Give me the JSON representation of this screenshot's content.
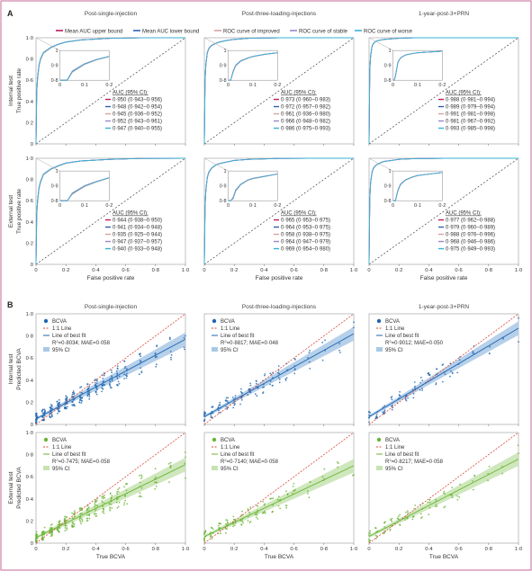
{
  "panel_a": {
    "label": "A",
    "columns": [
      "Post-single-injection",
      "Post-three-loading-injections",
      "1-year-post-3+PRN"
    ],
    "rows": [
      "Internal test",
      "External test"
    ],
    "legend": [
      {
        "name": "Mean AUC upper bound",
        "color": "#c2185b"
      },
      {
        "name": "Mean AUC lower bound",
        "color": "#2f5fb3"
      },
      {
        "name": "ROC curve of improved",
        "color": "#d9a0a0"
      },
      {
        "name": "ROC curve of stable",
        "color": "#9b86c8"
      },
      {
        "name": "ROC curve of worse",
        "color": "#35b2d6"
      }
    ],
    "ylabel": "True positive rate",
    "xlabel": "False positive rate",
    "ticks": [
      "0",
      "0·2",
      "0·4",
      "0·6",
      "0·8",
      "1·0"
    ],
    "inset_xticks": [
      "0",
      "0·1",
      "0·2"
    ],
    "inset_yticks": [
      "1",
      "0·9",
      "0·8"
    ],
    "auc_title": "AUC (95% CI):",
    "auc": [
      [
        [
          "0·950 (0·943–0·956)",
          "0·948 (0·942–0·954)",
          "0·945 (0·936–0·952)",
          "0·952 (0·943–0·961)",
          "0·947 (0·940–0·955)"
        ],
        [
          "0·973 (0·960–0·983)",
          "0·972 (0·957–0·982)",
          "0·961 (0·936–0·980)",
          "0·966 (0·948–0·982)",
          "0·986 (0·975–0·993)"
        ],
        [
          "0·988 (0·981–0·994)",
          "0·989 (0·979–0·994)",
          "0·991 (0·981–0·998)",
          "0·981 (0·967–0·992)",
          "0·993 (0·985–0·998)"
        ]
      ],
      [
        [
          "0·944 (0·938–0·950)",
          "0·941 (0·934–0·948)",
          "0·935 (0·925–0·944)",
          "0·947 (0·937–0·957)",
          "0·940 (0·933–0·948)"
        ],
        [
          "0·965 (0·953–0·975)",
          "0·964 (0·953–0·975)",
          "0·958 (0·938–0·975)",
          "0·964 (0·947–0·979)",
          "0·969 (0·954–0·980)"
        ],
        [
          "0·977 (0·962–0·988)",
          "0·979 (0·960–0·989)",
          "0·988 (0·976–0·996)",
          "0·968 (0·946–0·986)",
          "0·975 (0·949–0·993)"
        ]
      ]
    ]
  },
  "panel_b": {
    "label": "B",
    "columns": [
      "Post-single-injection",
      "Post-three-loading-injections",
      "1-year-post-3+PRN"
    ],
    "rows": [
      "Internal test",
      "External test"
    ],
    "ylabel": "Predicted BCVA",
    "xlabel": "True BCVA",
    "ticks": [
      "0",
      "0·2",
      "0·4",
      "0·6",
      "0·8",
      "1·0"
    ],
    "legend_labels": [
      "BCVA",
      "1:1 Line",
      "Line of best fit",
      "95% CI"
    ],
    "colors": {
      "internal": "#1f66b0",
      "external": "#6ab536",
      "identity": "#d94a3a",
      "internal_ci": "#a9c8e6",
      "external_ci": "#c7e3b1"
    },
    "stats": [
      [
        {
          "r2": "0·8034",
          "mae": "0·058"
        },
        {
          "r2": "0·8817",
          "mae": "0·048"
        },
        {
          "r2": "0·9012",
          "mae": "0·050"
        }
      ],
      [
        {
          "r2": "0·7475",
          "mae": "0·058"
        },
        {
          "r2": "0·7140",
          "mae": "0·058"
        },
        {
          "r2": "0·8217",
          "mae": "0·058"
        }
      ]
    ]
  },
  "chart_data": [
    {
      "type": "line",
      "xlabel": "False positive rate",
      "ylabel": "True positive rate",
      "xlim": [
        0,
        1
      ],
      "ylim": [
        0,
        1
      ],
      "rows": [
        "Internal test",
        "External test"
      ],
      "columns": [
        "Post-single-injection",
        "Post-three-loading-injections",
        "1-year-post-3+PRN"
      ],
      "roc_fpr": [
        0,
        0.005,
        0.01,
        0.02,
        0.03,
        0.05,
        0.08,
        0.1,
        0.15,
        0.2,
        0.3,
        0.5,
        0.7,
        1.0
      ],
      "roc_tpr": [
        [
          [
            0,
            0.5,
            0.62,
            0.74,
            0.8,
            0.86,
            0.89,
            0.91,
            0.94,
            0.96,
            0.98,
            0.995,
            0.999,
            1
          ],
          [
            0,
            0.6,
            0.75,
            0.86,
            0.9,
            0.93,
            0.95,
            0.96,
            0.975,
            0.985,
            0.995,
            1,
            1,
            1
          ],
          [
            0,
            0.7,
            0.83,
            0.92,
            0.95,
            0.97,
            0.98,
            0.985,
            0.99,
            0.995,
            1,
            1,
            1,
            1
          ]
        ],
        [
          [
            0,
            0.48,
            0.6,
            0.72,
            0.78,
            0.85,
            0.88,
            0.9,
            0.93,
            0.955,
            0.975,
            0.99,
            0.998,
            1
          ],
          [
            0,
            0.55,
            0.7,
            0.82,
            0.87,
            0.91,
            0.94,
            0.95,
            0.965,
            0.98,
            0.99,
            0.998,
            1,
            1
          ],
          [
            0,
            0.62,
            0.77,
            0.87,
            0.91,
            0.94,
            0.96,
            0.97,
            0.98,
            0.99,
            0.997,
            1,
            1,
            1
          ]
        ]
      ]
    },
    {
      "type": "scatter",
      "xlabel": "True BCVA",
      "ylabel": "Predicted BCVA",
      "xlim": [
        0,
        1
      ],
      "ylim": [
        0,
        1
      ],
      "rows": [
        "Internal test",
        "External test"
      ],
      "columns": [
        "Post-single-injection",
        "Post-three-loading-injections",
        "1-year-post-3+PRN"
      ],
      "fit": [
        [
          {
            "intercept": 0.05,
            "slope": 0.72
          },
          {
            "intercept": 0.07,
            "slope": 0.75
          },
          {
            "intercept": 0.07,
            "slope": 0.8
          }
        ],
        [
          {
            "intercept": 0.05,
            "slope": 0.66
          },
          {
            "intercept": 0.06,
            "slope": 0.64
          },
          {
            "intercept": 0.06,
            "slope": 0.7
          }
        ]
      ],
      "true_levels": [
        0,
        0.05,
        0.1,
        0.15,
        0.2,
        0.25,
        0.3,
        0.35,
        0.4,
        0.45,
        0.5,
        0.55,
        0.6,
        0.7,
        0.8,
        0.9,
        1.0
      ]
    }
  ]
}
